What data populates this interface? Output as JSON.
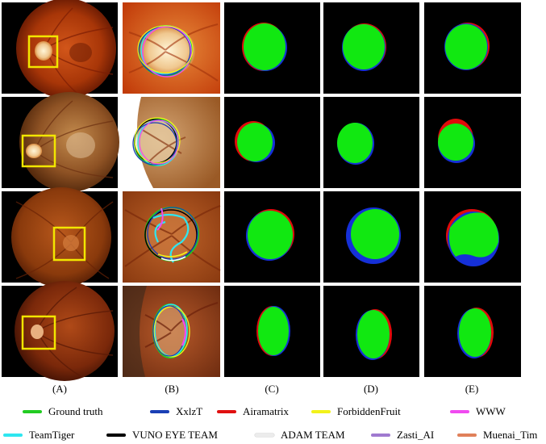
{
  "column_labels": [
    "(A)",
    "(B)",
    "(C)",
    "(D)",
    "(E)"
  ],
  "legend": [
    {
      "label": "Ground truth",
      "color": "#22cc22"
    },
    {
      "label": "XxlzT",
      "color": "#1a3fb5"
    },
    {
      "label": "Airamatrix",
      "color": "#e01010"
    },
    {
      "label": "ForbiddenFruit",
      "color": "#f2f21a"
    },
    {
      "label": "WWW",
      "color": "#f04af0"
    },
    {
      "label": "TeamTiger",
      "color": "#2ee6f0"
    },
    {
      "label": "VUNO EYE TEAM",
      "color": "#000000"
    },
    {
      "label": "ADAM TEAM",
      "color": "#ececec"
    },
    {
      "label": "Zasti_AI",
      "color": "#a07ad0"
    },
    {
      "label": "Muenai_Tim",
      "color": "#e0805a"
    }
  ],
  "colors": {
    "highlight_box": "#f2e600",
    "mask_green": "#11e811",
    "mask_blue": "#1530d8",
    "mask_red": "#e00a0a"
  }
}
